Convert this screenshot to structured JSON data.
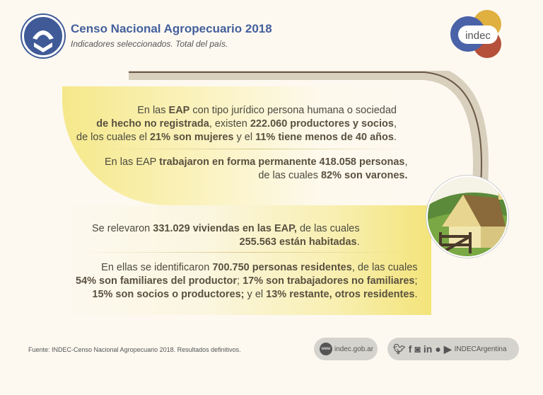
{
  "header": {
    "title": "Censo Nacional Agropecuario 2018",
    "subtitle": "Indicadores seleccionados. Total del país.",
    "brand_logo_text": "indec"
  },
  "colors": {
    "title": "#44609c",
    "highlight": "#f3e47a",
    "indec_blue": "#4a62a8",
    "indec_yellow": "#e0b040",
    "indec_red": "#b5503a"
  },
  "paragraphs": [
    {
      "lines": [
        [
          {
            "t": "En las "
          },
          {
            "t": "EAP",
            "b": true
          },
          {
            "t": " con tipo jurídico persona humana o sociedad"
          }
        ],
        [
          {
            "t": " de hecho no registrada",
            "b": true
          },
          {
            "t": ", existen "
          },
          {
            "t": "222.060 productores y socios",
            "b": true
          },
          {
            "t": ","
          }
        ],
        [
          {
            "t": "de los cuales el "
          },
          {
            "t": "21% son mujeres",
            "b": true
          },
          {
            "t": " y el "
          },
          {
            "t": "11% tiene menos de 40 años",
            "b": true
          },
          {
            "t": "."
          }
        ]
      ]
    },
    {
      "lines": [
        [
          {
            "t": "En las EAP "
          },
          {
            "t": "trabajaron en forma permanente 418.058 personas",
            "b": true
          },
          {
            "t": ","
          }
        ],
        [
          {
            "t": "de las cuales "
          },
          {
            "t": "82% son varones.",
            "b": true
          }
        ]
      ]
    },
    {
      "lines": [
        [
          {
            "t": "Se relevaron "
          },
          {
            "t": "331.029 viviendas en las EAP,",
            "b": true
          },
          {
            "t": " de las cuales"
          }
        ],
        [
          {
            "t": "255.563 están habitadas",
            "b": true
          },
          {
            "t": "."
          }
        ]
      ]
    },
    {
      "lines": [
        [
          {
            "t": "En ellas se identificaron "
          },
          {
            "t": "700.750 personas residentes",
            "b": true
          },
          {
            "t": ", de las cuales"
          }
        ],
        [
          {
            "t": "54% son familiares del productor",
            "b": true
          },
          {
            "t": "; "
          },
          {
            "t": "17% son trabajadores no familiares",
            "b": true
          },
          {
            "t": ";"
          }
        ],
        [
          {
            "t": "15% son socios o productores;",
            "b": true
          },
          {
            "t": " y el "
          },
          {
            "t": "13% restante, otros residentes",
            "b": true
          },
          {
            "t": "."
          }
        ]
      ]
    }
  ],
  "footer": {
    "source": "Fuente: INDEC-Censo Nacional Agropecuario 2018. Resultados definitivos.",
    "www_icon": "www",
    "website": "indec.gob.ar",
    "social_handle": "INDECArgentina",
    "social_icons": [
      "twitter-icon",
      "facebook-icon",
      "instagram-icon",
      "linkedin-icon",
      "spotify-icon",
      "youtube-icon"
    ]
  }
}
